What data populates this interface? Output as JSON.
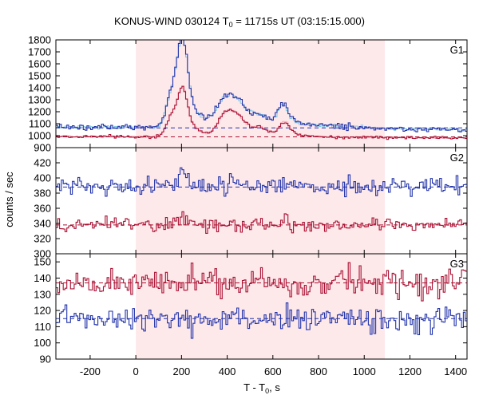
{
  "chart_data": {
    "type": "line",
    "title": "KONUS-WIND 030124 T",
    "title_sub": "0",
    "title_rest": " = 11715s UT (03:15:15.000)",
    "xlabel": "T - T",
    "xlabel_sub": "0",
    "xlabel_rest": ", s",
    "ylabel": "counts / sec",
    "xlim": [
      -350,
      1450
    ],
    "x_ticks": [
      -200,
      0,
      200,
      400,
      600,
      800,
      1000,
      1200,
      1400
    ],
    "x_tick_labels": [
      "-200",
      "0",
      "200",
      "400",
      "600",
      "800",
      "1000",
      "1200",
      "1400"
    ],
    "highlight_interval": [
      0,
      1090
    ],
    "colors": {
      "highlight": "#fde8ea",
      "blue": "#2233aa",
      "red": "#aa1133",
      "light_blue": "#7ec8e3",
      "pink": "#f7a8b8",
      "frame": "#000000"
    },
    "bin_width": 8,
    "panels": [
      {
        "label": "G1",
        "ylim": [
          900,
          1800
        ],
        "y_ticks": [
          900,
          1000,
          1100,
          1200,
          1300,
          1400,
          1500,
          1600,
          1700,
          1800
        ],
        "y_tick_labels": [
          "900",
          "1000",
          "1100",
          "1200",
          "1300",
          "1400",
          "1500",
          "1600",
          "1700",
          "1800"
        ],
        "series": [
          {
            "color": "blue",
            "background": 1070,
            "noise": 12,
            "trend": -0.012,
            "pulses": [
              {
                "x": 205,
                "amp": 560,
                "w": 22
              },
              {
                "x": 160,
                "amp": 260,
                "w": 25
              },
              {
                "x": 230,
                "amp": 160,
                "w": 45
              },
              {
                "x": 395,
                "amp": 240,
                "w": 45
              },
              {
                "x": 455,
                "amp": 120,
                "w": 35
              },
              {
                "x": 540,
                "amp": 110,
                "w": 40
              },
              {
                "x": 645,
                "amp": 200,
                "w": 25
              }
            ],
            "tail": {
              "start": 680,
              "end": 1100,
              "amp": 40
            }
          },
          {
            "color": "red",
            "background": 990,
            "noise": 6,
            "trend": -0.006,
            "pulses": [
              {
                "x": 205,
                "amp": 330,
                "w": 20
              },
              {
                "x": 160,
                "amp": 170,
                "w": 25
              },
              {
                "x": 240,
                "amp": 90,
                "w": 40
              },
              {
                "x": 400,
                "amp": 200,
                "w": 40
              },
              {
                "x": 460,
                "amp": 100,
                "w": 35
              },
              {
                "x": 545,
                "amp": 80,
                "w": 35
              },
              {
                "x": 650,
                "amp": 130,
                "w": 25
              }
            ],
            "tail": {
              "start": 680,
              "end": 900,
              "amp": 20
            }
          }
        ],
        "dashed_levels": [
          {
            "value": 1065,
            "color": "blue"
          },
          {
            "value": 990,
            "color": "red"
          }
        ]
      },
      {
        "label": "G2",
        "ylim": [
          300,
          440
        ],
        "y_ticks": [
          300,
          320,
          340,
          360,
          380,
          400,
          420
        ],
        "y_tick_labels": [
          "300",
          "320",
          "340",
          "360",
          "380",
          "400",
          "420"
        ],
        "series": [
          {
            "color": "blue",
            "background": 388,
            "noise": 5.5,
            "trend": 0,
            "pulses": [
              {
                "x": 205,
                "amp": 25,
                "w": 15
              },
              {
                "x": 400,
                "amp": 6,
                "w": 40
              }
            ],
            "tail": null
          },
          {
            "color": "red",
            "background": 338,
            "noise": 4.5,
            "trend": 0,
            "pulses": [
              {
                "x": 210,
                "amp": 8,
                "w": 25
              }
            ],
            "tail": null
          }
        ],
        "dashed_levels": [
          {
            "value": 388,
            "color": "blue"
          },
          {
            "value": 338,
            "color": "red"
          }
        ]
      },
      {
        "label": "G3",
        "ylim": [
          90,
          155
        ],
        "y_ticks": [
          90,
          100,
          110,
          120,
          130,
          140,
          150
        ],
        "y_tick_labels": [
          "90",
          "100",
          "110",
          "120",
          "130",
          "140",
          "150"
        ],
        "series": [
          {
            "color": "red",
            "background": 137,
            "noise": 4,
            "trend": 0,
            "pulses": [],
            "tail": null
          },
          {
            "color": "blue",
            "background": 115,
            "noise": 4,
            "trend": 0,
            "pulses": [],
            "tail": null
          }
        ],
        "dashed_levels": [
          {
            "value": 137,
            "color": "red"
          },
          {
            "value": 115,
            "color": "blue"
          }
        ]
      }
    ]
  }
}
